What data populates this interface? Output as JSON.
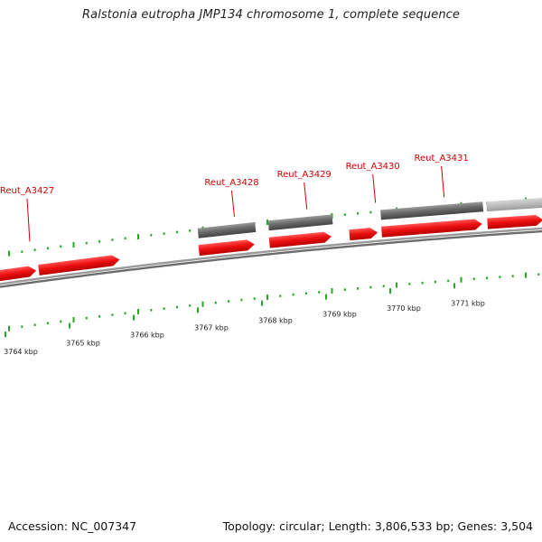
{
  "title": "Ralstonia eutropha JMP134 chromosome 1, complete sequence",
  "footer": {
    "accession": "Accession: NC_007347",
    "summary": "Topology: circular; Length: 3,806,533 bp; Genes: 3,504"
  },
  "colors": {
    "cds": "#ee1111",
    "feature_grey": "#666666",
    "feature_lightgrey": "#bbbbbb",
    "tick_green": "#22aa22",
    "backbone": "#888888",
    "label_red": "#cc0000"
  },
  "chart_data": {
    "type": "genome-map",
    "visible_range_kbp": [
      3763.7,
      3772.3
    ],
    "scale_labels": [
      "3764 kbp",
      "3765 kbp",
      "3766 kbp",
      "3767 kbp",
      "3768 kbp",
      "3769 kbp",
      "3770 kbp",
      "3771 kbp"
    ],
    "scale_values_kbp": [
      3764,
      3765,
      3766,
      3767,
      3768,
      3769,
      3770,
      3771
    ],
    "gene_labels": [
      {
        "name": "Reut_A3427",
        "pos_kbp": 3764.38
      },
      {
        "name": "Reut_A3428",
        "pos_kbp": 3767.57
      },
      {
        "name": "Reut_A3429",
        "pos_kbp": 3768.7
      },
      {
        "name": "Reut_A3430",
        "pos_kbp": 3769.77
      },
      {
        "name": "Reut_A3431",
        "pos_kbp": 3770.84
      }
    ],
    "cds": [
      {
        "start": 3763.6,
        "end": 3764.5,
        "strand": "+"
      },
      {
        "start": 3764.5,
        "end": 3765.8,
        "strand": "+"
      },
      {
        "start": 3767.0,
        "end": 3767.9,
        "strand": "+"
      },
      {
        "start": 3768.1,
        "end": 3769.1,
        "strand": "+"
      },
      {
        "start": 3769.35,
        "end": 3769.82,
        "strand": "+"
      },
      {
        "start": 3769.85,
        "end": 3771.45,
        "strand": "+"
      },
      {
        "start": 3771.5,
        "end": 3772.4,
        "strand": "+"
      }
    ],
    "grey_features": [
      {
        "start": 3767.0,
        "end": 3767.9,
        "shade": "dark"
      },
      {
        "start": 3768.1,
        "end": 3769.1,
        "shade": "dark"
      },
      {
        "start": 3769.85,
        "end": 3771.45,
        "shade": "dark"
      },
      {
        "start": 3771.5,
        "end": 3772.4,
        "shade": "light"
      }
    ]
  }
}
